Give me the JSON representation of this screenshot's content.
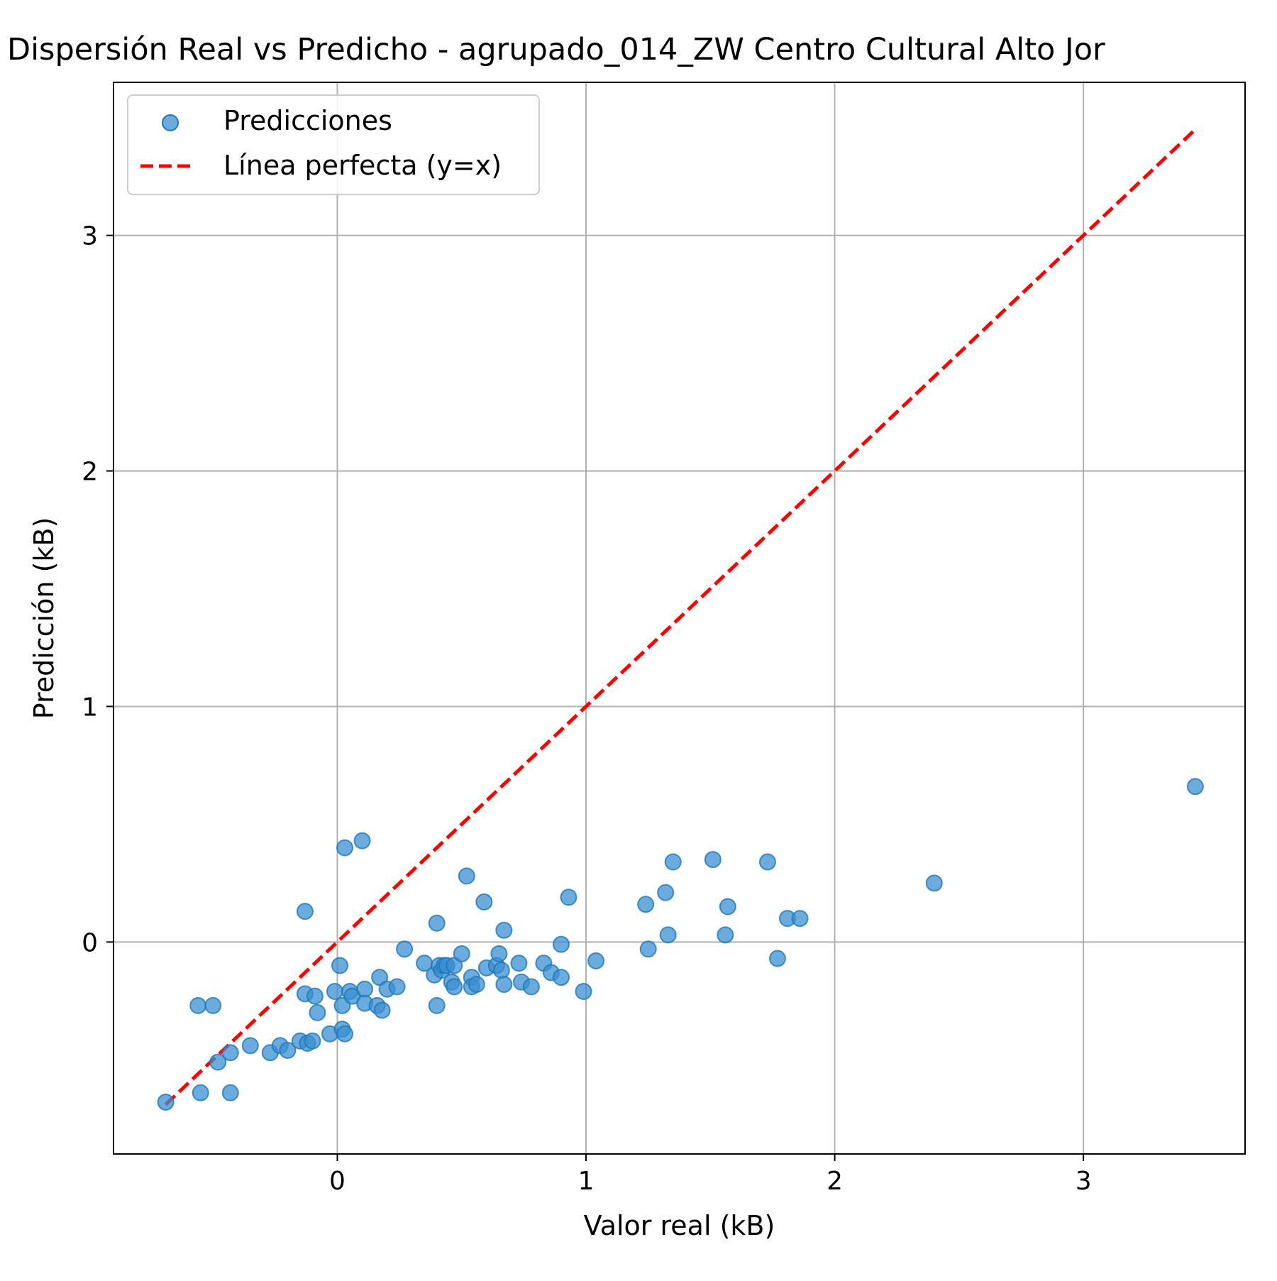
{
  "colors": {
    "points": "#1f77b4",
    "points_fill": "#3a8fd3",
    "perfect_line": "#ff0000",
    "grid": "#b0b0b0",
    "axes": "#000000"
  },
  "chart_data": {
    "type": "scatter",
    "title": "Dispersión Real vs Predicho - agrupado_014_ZW Centro Cultural Alto Jor",
    "xlabel": "Valor real (kB)",
    "ylabel": "Predicción (kB)",
    "xlim": [
      -0.9,
      3.65
    ],
    "ylim": [
      -0.9,
      3.65
    ],
    "xticks": [
      0,
      1,
      2,
      3
    ],
    "yticks": [
      0,
      1,
      2,
      3
    ],
    "xtick_labels": [
      "0",
      "1",
      "2",
      "3"
    ],
    "ytick_labels": [
      "0",
      "1",
      "2",
      "3"
    ],
    "grid": true,
    "legend_position": "top-left",
    "series": [
      {
        "name": "Predicciones",
        "kind": "scatter",
        "points": [
          [
            -0.69,
            -0.68
          ],
          [
            -0.56,
            -0.27
          ],
          [
            -0.55,
            -0.64
          ],
          [
            -0.5,
            -0.27
          ],
          [
            -0.48,
            -0.51
          ],
          [
            -0.43,
            -0.47
          ],
          [
            -0.43,
            -0.64
          ],
          [
            -0.35,
            -0.44
          ],
          [
            -0.27,
            -0.47
          ],
          [
            -0.23,
            -0.44
          ],
          [
            -0.2,
            -0.46
          ],
          [
            -0.15,
            -0.42
          ],
          [
            -0.13,
            0.13
          ],
          [
            -0.13,
            -0.22
          ],
          [
            -0.12,
            -0.43
          ],
          [
            -0.1,
            -0.42
          ],
          [
            -0.09,
            -0.23
          ],
          [
            -0.08,
            -0.3
          ],
          [
            -0.03,
            -0.39
          ],
          [
            -0.01,
            -0.21
          ],
          [
            0.01,
            -0.1
          ],
          [
            0.02,
            -0.37
          ],
          [
            0.02,
            -0.27
          ],
          [
            0.03,
            0.4
          ],
          [
            0.03,
            -0.39
          ],
          [
            0.05,
            -0.21
          ],
          [
            0.06,
            -0.23
          ],
          [
            0.1,
            0.43
          ],
          [
            0.11,
            -0.2
          ],
          [
            0.11,
            -0.26
          ],
          [
            0.16,
            -0.27
          ],
          [
            0.17,
            -0.15
          ],
          [
            0.18,
            -0.29
          ],
          [
            0.2,
            -0.2
          ],
          [
            0.24,
            -0.19
          ],
          [
            0.27,
            -0.03
          ],
          [
            0.35,
            -0.09
          ],
          [
            0.39,
            -0.14
          ],
          [
            0.4,
            0.08
          ],
          [
            0.4,
            -0.27
          ],
          [
            0.41,
            -0.1
          ],
          [
            0.42,
            -0.12
          ],
          [
            0.43,
            -0.1
          ],
          [
            0.44,
            -0.1
          ],
          [
            0.46,
            -0.17
          ],
          [
            0.47,
            -0.1
          ],
          [
            0.47,
            -0.19
          ],
          [
            0.5,
            -0.05
          ],
          [
            0.52,
            0.28
          ],
          [
            0.54,
            -0.15
          ],
          [
            0.54,
            -0.19
          ],
          [
            0.56,
            -0.18
          ],
          [
            0.59,
            0.17
          ],
          [
            0.6,
            -0.11
          ],
          [
            0.64,
            -0.1
          ],
          [
            0.65,
            -0.05
          ],
          [
            0.66,
            -0.12
          ],
          [
            0.67,
            0.05
          ],
          [
            0.67,
            -0.18
          ],
          [
            0.73,
            -0.09
          ],
          [
            0.74,
            -0.17
          ],
          [
            0.78,
            -0.19
          ],
          [
            0.83,
            -0.09
          ],
          [
            0.86,
            -0.13
          ],
          [
            0.9,
            -0.01
          ],
          [
            0.9,
            -0.15
          ],
          [
            0.93,
            0.19
          ],
          [
            0.99,
            -0.21
          ],
          [
            1.04,
            -0.08
          ],
          [
            1.24,
            0.16
          ],
          [
            1.25,
            -0.03
          ],
          [
            1.32,
            0.21
          ],
          [
            1.33,
            0.03
          ],
          [
            1.35,
            0.34
          ],
          [
            1.51,
            0.35
          ],
          [
            1.56,
            0.03
          ],
          [
            1.57,
            0.15
          ],
          [
            1.73,
            0.34
          ],
          [
            1.77,
            -0.07
          ],
          [
            1.81,
            0.1
          ],
          [
            1.86,
            0.1
          ],
          [
            2.4,
            0.25
          ],
          [
            3.45,
            0.66
          ]
        ]
      },
      {
        "name": "Línea perfecta (y=x)",
        "kind": "line",
        "style": "dashed",
        "points": [
          [
            -0.69,
            -0.69
          ],
          [
            3.45,
            3.45
          ]
        ]
      }
    ]
  }
}
